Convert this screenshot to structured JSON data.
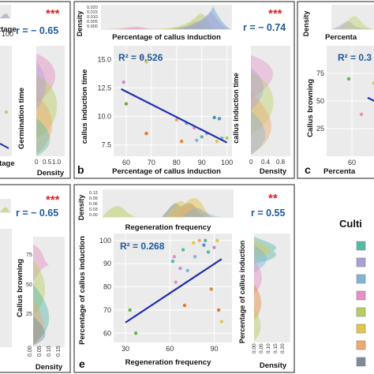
{
  "colors": {
    "panel_border": "#555555",
    "plot_bg": "#EBEBEB",
    "grid": "#FFFFFF",
    "regression_line": "#1F2FB0",
    "stat_text": "#1F5A9A",
    "stars": "#E02020",
    "tick_text": "#333333"
  },
  "panels": {
    "a": {
      "xlabel": "...ttage",
      "r_text": "r = − 0.65",
      "stars": "***",
      "right_ylabel": "Germination time",
      "right_density_label": "Density",
      "right_ticks": [
        "0",
        "0.5",
        "1.0"
      ],
      "top_tick": "100"
    },
    "b": {
      "letter": "b",
      "r_text": "r = − 0.74",
      "stars": "***",
      "r2_text": "R² = 0.526",
      "top_density_label": "Density",
      "top_ticks": [
        "0.020",
        "0.015",
        "0.010",
        "0.005",
        "0.000"
      ],
      "xlabel": "Percentage of callus induction",
      "top_xlabel": "Percentage of callus induction",
      "ylabel": "callus induction time",
      "right_ylabel": "callus induction time",
      "right_density_label": "Density",
      "right_ticks": [
        "0",
        "0.4",
        "0.8"
      ]
    },
    "c": {
      "letter": "c",
      "r2_text": "R² = 0.3",
      "top_density_label": "Density",
      "top_xlabel": "Percenta",
      "xlabel": "Percenta",
      "ylabel": "Callus browning"
    },
    "d": {
      "r_text": "r = − 0.65",
      "stars": "***",
      "right_ylabel": "Callus browning",
      "right_density_label": "Density",
      "right_ticks": [
        "0.00",
        "0.05",
        "0.10",
        "0.15"
      ],
      "right_y_ticks": [
        "75",
        "50",
        "25"
      ]
    },
    "e": {
      "letter": "e",
      "r_text": "r = 0.55",
      "stars": "**",
      "r2_text": "R² = 0.268",
      "top_density_label": "Density",
      "top_ticks": [
        "0.13",
        "0.09",
        "0.06",
        "0.03",
        "0.00"
      ],
      "xlabel": "Regeneration frequency",
      "top_xlabel": "Regeneration frequency",
      "ylabel": "Percentage of callus induction",
      "right_ylabel": "Percentage of callus induction",
      "right_density_label": "Density",
      "right_ticks": [
        "0.00",
        "0.05",
        "0.10",
        "0.15",
        "0.20"
      ]
    },
    "legend": {
      "title": "Culti",
      "swatches": [
        "#56B9A8",
        "#A9A0D6",
        "#7FB6D8",
        "#E58FC2",
        "#B7CF5E",
        "#E2C64C",
        "#F0A86B",
        "#7C8A99"
      ]
    }
  },
  "chart_data": [
    {
      "panel": "b",
      "type": "scatter",
      "xlabel": "Percentage of callus induction",
      "ylabel": "callus induction time",
      "xlim": [
        55,
        102
      ],
      "ylim": [
        6.5,
        16.2
      ],
      "xticks": [
        60,
        70,
        80,
        90,
        100
      ],
      "yticks": [
        7.5,
        10.0,
        12.5,
        15.0
      ],
      "regression": {
        "x": [
          58,
          100
        ],
        "y": [
          12.4,
          7.7
        ]
      },
      "points": [
        {
          "x": 59,
          "y": 13.0,
          "color": "#C98AD6"
        },
        {
          "x": 60,
          "y": 11.1,
          "color": "#6AB04C"
        },
        {
          "x": 66,
          "y": 15.2,
          "color": "#E58FC2"
        },
        {
          "x": 68,
          "y": 14.8,
          "color": "#B7CF5E"
        },
        {
          "x": 68,
          "y": 8.5,
          "color": "#E07A2B"
        },
        {
          "x": 80,
          "y": 9.7,
          "color": "#F0A86B"
        },
        {
          "x": 82,
          "y": 7.8,
          "color": "#E0883A"
        },
        {
          "x": 84,
          "y": 9.4,
          "color": "#56B9A8"
        },
        {
          "x": 87,
          "y": 9.0,
          "color": "#E58FC2"
        },
        {
          "x": 88,
          "y": 7.9,
          "color": "#7FB6D8"
        },
        {
          "x": 90,
          "y": 8.2,
          "color": "#56B9A8"
        },
        {
          "x": 92,
          "y": 8.5,
          "color": "#C98AD6"
        },
        {
          "x": 95,
          "y": 9.9,
          "color": "#3A9A8A"
        },
        {
          "x": 96,
          "y": 7.8,
          "color": "#E2C64C"
        },
        {
          "x": 97,
          "y": 9.8,
          "color": "#5A8AD6"
        },
        {
          "x": 98,
          "y": 8.1,
          "color": "#7FB6D8"
        },
        {
          "x": 100,
          "y": 8.1,
          "color": "#B7CF5E"
        }
      ]
    },
    {
      "panel": "e",
      "type": "scatter",
      "xlabel": "Regeneration frequency",
      "ylabel": "Percentage of callus induction",
      "xlim": [
        22,
        102
      ],
      "ylim": [
        56,
        103
      ],
      "xticks": [
        30,
        60,
        90
      ],
      "yticks": [
        60,
        70,
        80,
        90,
        100
      ],
      "regression": {
        "x": [
          30,
          95
        ],
        "y": [
          64.6,
          92.0
        ]
      },
      "points": [
        {
          "x": 33,
          "y": 70,
          "color": "#6AB04C"
        },
        {
          "x": 37,
          "y": 60,
          "color": "#6AB04C"
        },
        {
          "x": 62,
          "y": 91,
          "color": "#56B9A8"
        },
        {
          "x": 63,
          "y": 93,
          "color": "#E58FC2"
        },
        {
          "x": 64,
          "y": 82,
          "color": "#E58FC2"
        },
        {
          "x": 67,
          "y": 88,
          "color": "#C98AD6"
        },
        {
          "x": 69,
          "y": 96,
          "color": "#56B9A8"
        },
        {
          "x": 70,
          "y": 72,
          "color": "#E07A2B"
        },
        {
          "x": 72,
          "y": 87,
          "color": "#7FB6D8"
        },
        {
          "x": 76,
          "y": 99,
          "color": "#E2C64C"
        },
        {
          "x": 77,
          "y": 93,
          "color": "#7FB6D8"
        },
        {
          "x": 80,
          "y": 100,
          "color": "#F0A86B"
        },
        {
          "x": 83,
          "y": 98,
          "color": "#5A8AD6"
        },
        {
          "x": 84,
          "y": 100,
          "color": "#56B9A8"
        },
        {
          "x": 86,
          "y": 95,
          "color": "#56B9A8"
        },
        {
          "x": 88,
          "y": 79,
          "color": "#E0883A"
        },
        {
          "x": 90,
          "y": 97,
          "color": "#C98AD6"
        },
        {
          "x": 92,
          "y": 100,
          "color": "#E2C64C"
        },
        {
          "x": 93,
          "y": 70,
          "color": "#E07A2B"
        },
        {
          "x": 95,
          "y": 65,
          "color": "#E2C64C"
        }
      ]
    },
    {
      "panel": "c",
      "type": "scatter",
      "xlabel": "Percenta",
      "ylabel": "Callus browning",
      "xlim": [
        52,
        72
      ],
      "ylim": [
        0,
        100
      ],
      "xticks": [
        60,
        70
      ],
      "yticks": [
        25,
        50,
        75
      ],
      "regression": {
        "x": [
          65,
          72
        ],
        "y": [
          53,
          43
        ]
      },
      "points": [
        {
          "x": 59,
          "y": 70,
          "color": "#6AB04C"
        },
        {
          "x": 63,
          "y": 38,
          "color": "#E58FC2"
        },
        {
          "x": 67,
          "y": 66,
          "color": "#B7CF5E"
        },
        {
          "x": 70,
          "y": 46,
          "color": "#E07A2B"
        }
      ]
    }
  ]
}
